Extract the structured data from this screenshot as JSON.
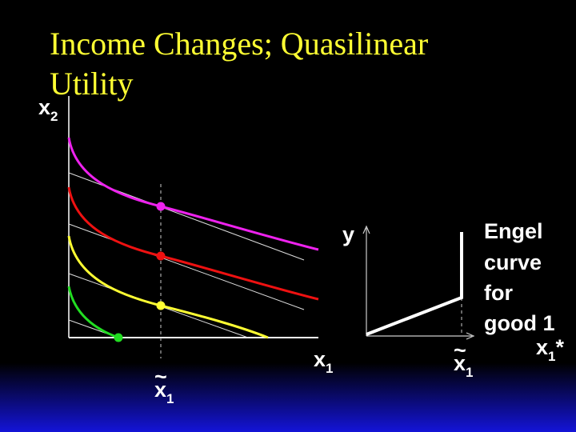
{
  "title": [
    "Income Changes; Quasilinear",
    "Utility"
  ],
  "left_panel": {
    "y_label": {
      "base": "x",
      "sub": "2"
    },
    "x_label": {
      "base": "x",
      "sub": "1"
    },
    "marker_label": {
      "tilde": "~",
      "base": "x",
      "sub": "1"
    }
  },
  "right_panel": {
    "y_label": "y",
    "x_label": {
      "base": "x",
      "sub": "1",
      "suffix": "*"
    },
    "marker_label": {
      "tilde": "~",
      "base": "x",
      "sub": "1"
    },
    "caption": [
      "Engel",
      "curve",
      "for",
      "good 1"
    ]
  }
}
